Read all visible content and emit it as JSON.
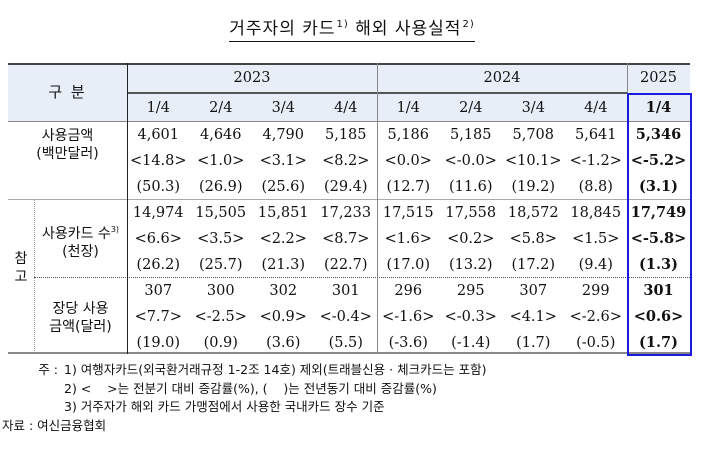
{
  "title": {
    "main": "거주자의 카드",
    "sup1": "1)",
    "rest": " 해외 사용실적",
    "sup2": "2)"
  },
  "table": {
    "corner_label": "구  분",
    "years": [
      {
        "label": "2023"
      },
      {
        "label": "2024"
      },
      {
        "label": "2025"
      }
    ],
    "quarters": [
      "1/4",
      "2/4",
      "3/4",
      "4/4",
      "1/4",
      "2/4",
      "3/4",
      "4/4",
      "1/4"
    ],
    "reference_label": "참\n고",
    "reference_label_top": "참",
    "reference_label_bottom": "고",
    "rows": [
      {
        "label_line1": "사용금액",
        "label_line2": "(백만달러)",
        "values": [
          "4,601",
          "4,646",
          "4,790",
          "5,185",
          "5,186",
          "5,185",
          "5,708",
          "5,641",
          "5,346"
        ],
        "qoq": [
          "<14.8>",
          "<1.0>",
          "<3.1>",
          "<8.2>",
          "<0.0>",
          "<-0.0>",
          "<10.1>",
          "<-1.2>",
          "<-5.2>"
        ],
        "yoy": [
          "(50.3)",
          "(26.9)",
          "(25.6)",
          "(29.4)",
          "(12.7)",
          "(11.6)",
          "(19.2)",
          "(8.8)",
          "(3.1)"
        ]
      },
      {
        "label_line1": "사용카드 수",
        "label_sup": "3)",
        "label_line2": "(천장)",
        "values": [
          "14,974",
          "15,505",
          "15,851",
          "17,233",
          "17,515",
          "17,558",
          "18,572",
          "18,845",
          "17,749"
        ],
        "qoq": [
          "<6.6>",
          "<3.5>",
          "<2.2>",
          "<8.7>",
          "<1.6>",
          "<0.2>",
          "<5.8>",
          "<1.5>",
          "<-5.8>"
        ],
        "yoy": [
          "(26.2)",
          "(25.7)",
          "(21.3)",
          "(22.7)",
          "(17.0)",
          "(13.2)",
          "(17.2)",
          "(9.4)",
          "(1.3)"
        ]
      },
      {
        "label_line1": "장당 사용",
        "label_line2": "금액(달러)",
        "values": [
          "307",
          "300",
          "302",
          "301",
          "296",
          "295",
          "307",
          "299",
          "301"
        ],
        "qoq": [
          "<7.7>",
          "<-2.5>",
          "<0.9>",
          "<-0.4>",
          "<-1.6>",
          "<-0.3>",
          "<4.1>",
          "<-2.6>",
          "<0.6>"
        ],
        "yoy": [
          "(19.0)",
          "(0.9)",
          "(3.6)",
          "(5.5)",
          "(-3.6)",
          "(-1.4)",
          "(1.7)",
          "(-0.5)",
          "(1.7)"
        ]
      }
    ],
    "highlight_color": "#1a1adc",
    "header_bg": "#e8eef7"
  },
  "notes": {
    "prefix": "주 :",
    "items": [
      "1) 여행자카드(외국환거래규정 1-2조 14호) 제외(트래블신용 · 체크카드는 포함)",
      "2) <    >는 전분기 대비 증감률(%), (    )는 전년동기 대비 증감률(%)",
      "3) 거주자가 해외 카드 가맹점에서 사용한 국내카드 장수 기준"
    ],
    "source_prefix": "자료 :",
    "source": "여신금융협회"
  }
}
